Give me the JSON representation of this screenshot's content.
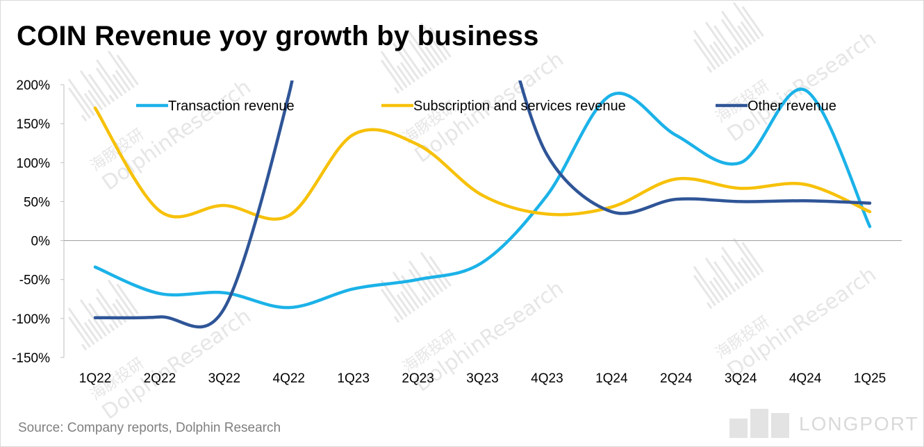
{
  "chart_data": {
    "type": "line",
    "title": "COIN Revenue yoy growth by business",
    "xlabel": "",
    "ylabel": "",
    "ylim": [
      -150,
      200
    ],
    "yticks": [
      200,
      150,
      100,
      50,
      0,
      -50,
      -100,
      -150
    ],
    "ytick_labels": [
      "200%",
      "150%",
      "100%",
      "50%",
      "0%",
      "-50%",
      "-100%",
      "-150%"
    ],
    "categories": [
      "1Q22",
      "2Q22",
      "3Q22",
      "4Q22",
      "1Q23",
      "2Q23",
      "3Q23",
      "4Q23",
      "1Q24",
      "2Q24",
      "3Q24",
      "4Q24",
      "1Q25"
    ],
    "legend_position": "top",
    "series": [
      {
        "name": "Transaction revenue",
        "color": "#1bb2e8",
        "values": [
          -34,
          -68,
          -67,
          -86,
          -62,
          -50,
          -28,
          58,
          187,
          135,
          100,
          193,
          18
        ]
      },
      {
        "name": "Subscription and services revenue",
        "color": "#f7c10a",
        "values": [
          170,
          38,
          45,
          32,
          136,
          123,
          58,
          34,
          43,
          79,
          67,
          72,
          37
        ]
      },
      {
        "name": "Other revenue",
        "color": "#2f5597",
        "values": [
          -99,
          -98,
          -87,
          187,
          null,
          null,
          null,
          110,
          37,
          53,
          50,
          51,
          48
        ]
      }
    ],
    "source": "Source: Company reports, Dolphin Research"
  },
  "watermark": {
    "cn": "海豚投研",
    "en": "DolphinResearch",
    "brand": "LONGPORT",
    "color": "#e6e6e6"
  }
}
